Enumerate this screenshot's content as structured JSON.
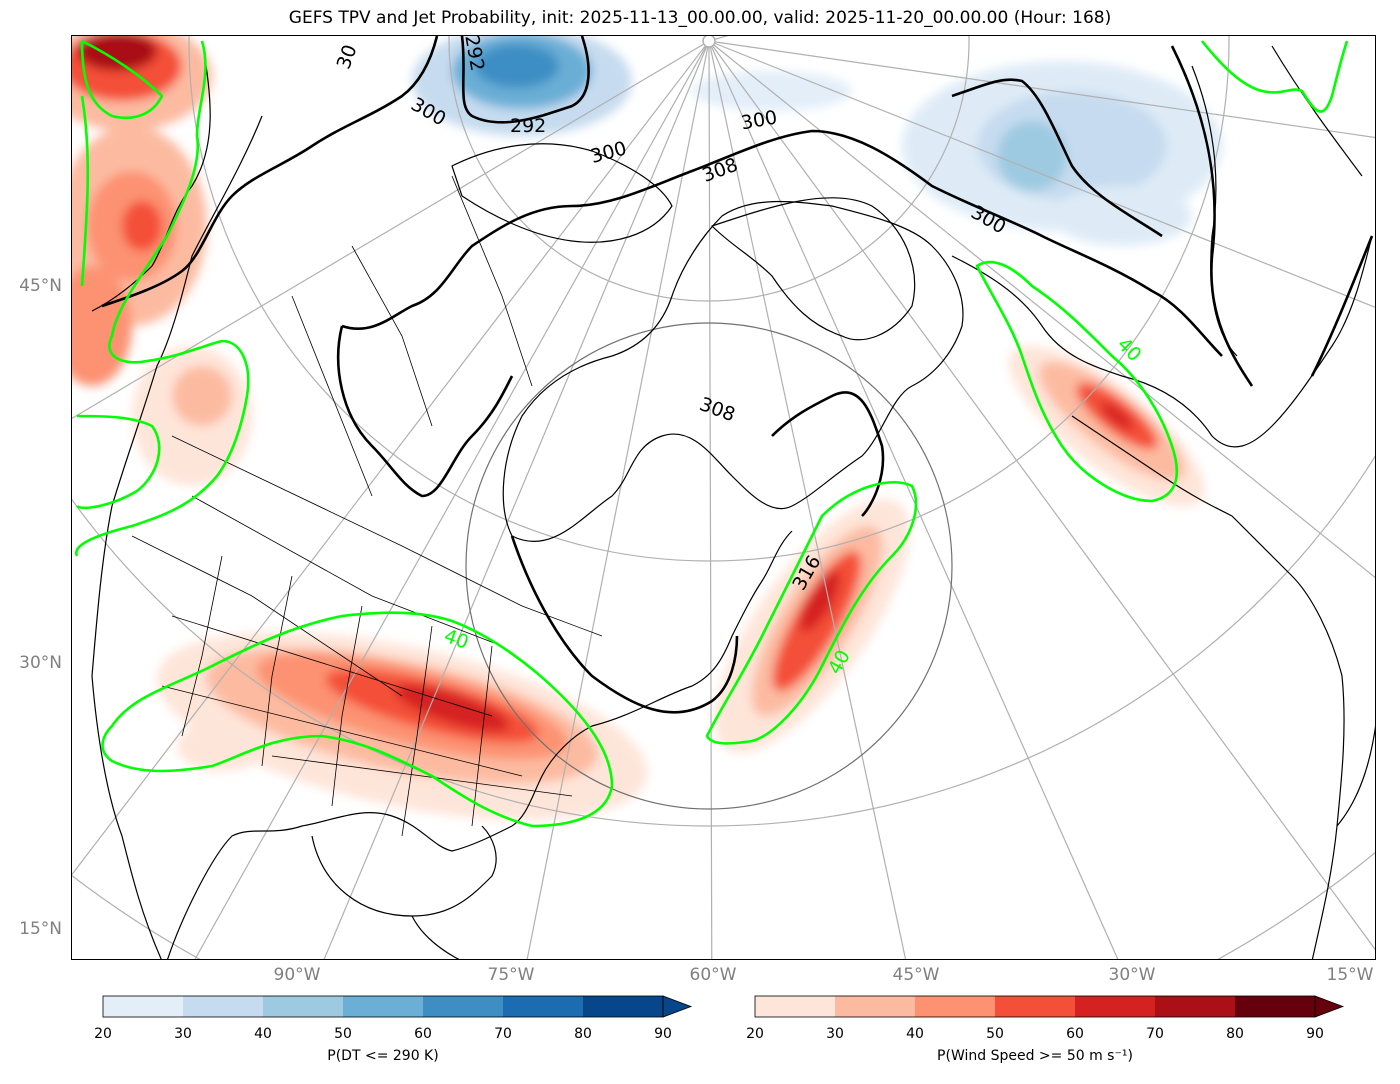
{
  "title": "GEFS TPV and Jet Probability, init: 2025-11-13_00.00.00, valid: 2025-11-20_00.00.00 (Hour: 168)",
  "lat_labels": [
    "45°N",
    "30°N",
    "15°N"
  ],
  "lon_labels": [
    "90°W",
    "75°W",
    "60°W",
    "45°W",
    "30°W",
    "15°W"
  ],
  "contour_labels": {
    "dt": [
      "292",
      "300",
      "300",
      "300",
      "308",
      "308",
      "316",
      "292",
      "300",
      "30"
    ],
    "jet": [
      "40",
      "40",
      "40"
    ]
  },
  "colorbars": [
    {
      "label": "P(DT <= 290 K)",
      "ticks": [
        "20",
        "30",
        "40",
        "50",
        "60",
        "70",
        "80",
        "90"
      ],
      "colors": [
        "#e3eef9",
        "#c6dbef",
        "#9ecae1",
        "#6baed6",
        "#3e8ec4",
        "#1c6cb1",
        "#08468b"
      ]
    },
    {
      "label": "P(Wind Speed >= 50 m s⁻¹)",
      "ticks": [
        "20",
        "30",
        "40",
        "50",
        "60",
        "70",
        "80",
        "90"
      ],
      "colors": [
        "#fee5d9",
        "#fcbba1",
        "#fc9272",
        "#f44f39",
        "#d52221",
        "#aa1016",
        "#67000d"
      ]
    }
  ],
  "colors": {
    "jet_contour": "#00ff00",
    "dt_contour": "#000000",
    "graticule": "#b0b0b0",
    "axis_label": "#808080"
  }
}
